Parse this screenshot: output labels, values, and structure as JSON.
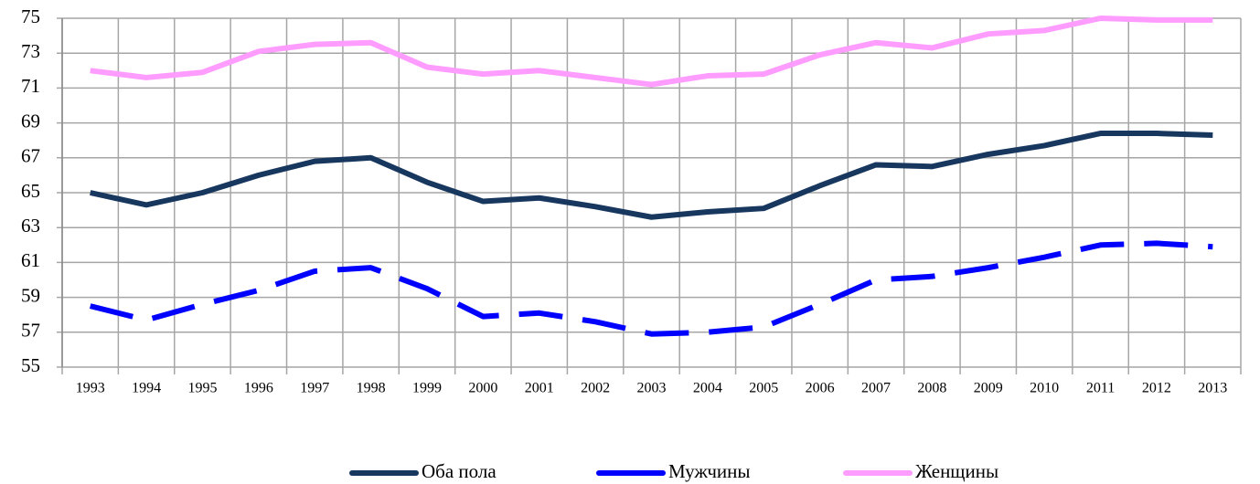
{
  "chart_data": {
    "type": "line",
    "categories": [
      "1993",
      "1994",
      "1995",
      "1996",
      "1997",
      "1998",
      "1999",
      "2000",
      "2001",
      "2002",
      "2003",
      "2004",
      "2005",
      "2006",
      "2007",
      "2008",
      "2009",
      "2010",
      "2011",
      "2012",
      "2013"
    ],
    "series": [
      {
        "name": "Оба пола",
        "color": "#17375e",
        "dash": "solid",
        "values": [
          65.0,
          64.3,
          65.0,
          66.0,
          66.8,
          67.0,
          65.6,
          64.5,
          64.7,
          64.2,
          63.6,
          63.9,
          64.1,
          65.4,
          66.6,
          66.5,
          67.2,
          67.7,
          68.4,
          68.4,
          68.3
        ]
      },
      {
        "name": "Мужчины",
        "color": "#0000ff",
        "dash": "dashed",
        "values": [
          58.5,
          57.7,
          58.6,
          59.4,
          60.5,
          60.7,
          59.5,
          57.9,
          58.1,
          57.6,
          56.9,
          57.0,
          57.3,
          58.6,
          60.0,
          60.2,
          60.7,
          61.3,
          62.0,
          62.1,
          61.9
        ]
      },
      {
        "name": "Женщины",
        "color": "#ff9cff",
        "dash": "solid",
        "values": [
          72.0,
          71.6,
          71.9,
          73.1,
          73.5,
          73.6,
          72.2,
          71.8,
          72.0,
          71.6,
          71.2,
          71.7,
          71.8,
          72.9,
          73.6,
          73.3,
          74.1,
          74.3,
          75.0,
          74.9,
          74.9
        ]
      }
    ],
    "ylim": [
      55,
      75
    ],
    "yticks": [
      55,
      57,
      59,
      61,
      63,
      65,
      67,
      69,
      71,
      73,
      75
    ],
    "grid": true,
    "legend": "bottom"
  }
}
